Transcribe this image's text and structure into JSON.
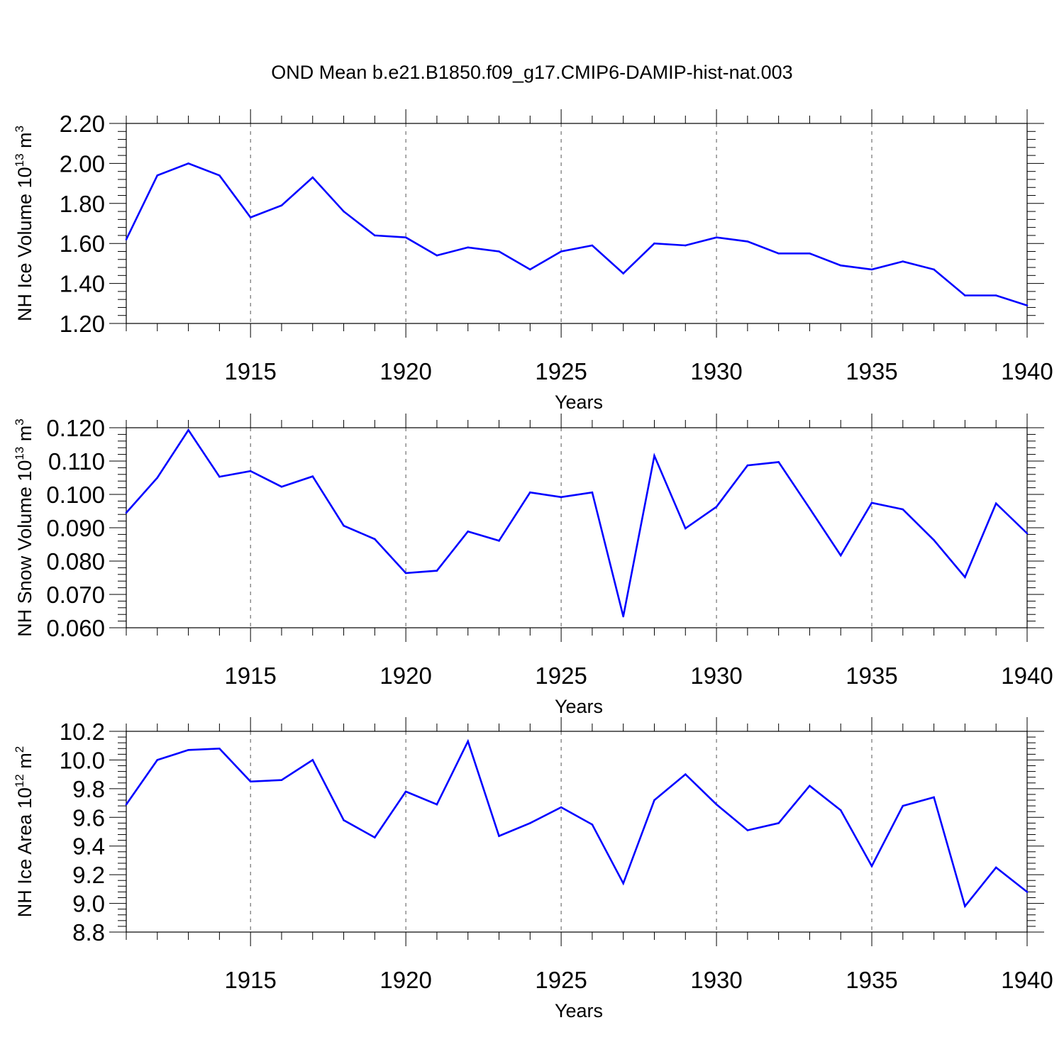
{
  "title": "OND Mean b.e21.B1850.f09_g17.CMIP6-DAMIP-hist-nat.003",
  "colors": {
    "line": "#0000ff",
    "axis": "#000000",
    "grid": "#555555"
  },
  "chart_data": [
    {
      "type": "line",
      "ylabel_main": "NH Ice Volume 10",
      "ylabel_exp": "13",
      "ylabel_unit": " m",
      "ylabel_unit_exp": "3",
      "xlabel": "Years",
      "xlim": [
        1911,
        1940
      ],
      "ylim": [
        1.2,
        2.2
      ],
      "yticks": [
        "1.20",
        "1.40",
        "1.60",
        "1.80",
        "2.00",
        "2.20"
      ],
      "xticks": [
        "1915",
        "1920",
        "1925",
        "1930",
        "1935",
        "1940"
      ],
      "grid": "vertical dashed at major x ticks",
      "x": [
        1911,
        1912,
        1913,
        1914,
        1915,
        1916,
        1917,
        1918,
        1919,
        1920,
        1921,
        1922,
        1923,
        1924,
        1925,
        1926,
        1927,
        1928,
        1929,
        1930,
        1931,
        1932,
        1933,
        1934,
        1935,
        1936,
        1937,
        1938,
        1939,
        1940
      ],
      "values": [
        1.62,
        1.94,
        2.0,
        1.94,
        1.73,
        1.79,
        1.93,
        1.76,
        1.64,
        1.63,
        1.54,
        1.58,
        1.56,
        1.47,
        1.56,
        1.59,
        1.45,
        1.6,
        1.59,
        1.63,
        1.61,
        1.55,
        1.55,
        1.49,
        1.47,
        1.51,
        1.47,
        1.34,
        1.34,
        1.29
      ]
    },
    {
      "type": "line",
      "ylabel_main": "NH Snow Volume 10",
      "ylabel_exp": "13",
      "ylabel_unit": " m",
      "ylabel_unit_exp": "3",
      "xlabel": "Years",
      "xlim": [
        1911,
        1940
      ],
      "ylim": [
        0.06,
        0.12
      ],
      "yticks": [
        "0.060",
        "0.070",
        "0.080",
        "0.090",
        "0.100",
        "0.110",
        "0.120"
      ],
      "xticks": [
        "1915",
        "1920",
        "1925",
        "1930",
        "1935",
        "1940"
      ],
      "grid": "vertical dashed at major x ticks",
      "x": [
        1911,
        1912,
        1913,
        1914,
        1915,
        1916,
        1917,
        1918,
        1919,
        1920,
        1921,
        1922,
        1923,
        1924,
        1925,
        1926,
        1927,
        1928,
        1929,
        1930,
        1931,
        1932,
        1933,
        1934,
        1935,
        1936,
        1937,
        1938,
        1939,
        1940
      ],
      "values": [
        0.0945,
        0.105,
        0.1193,
        0.1053,
        0.107,
        0.1023,
        0.1054,
        0.0906,
        0.0866,
        0.0764,
        0.0771,
        0.0889,
        0.0861,
        0.1006,
        0.0992,
        0.1006,
        0.0634,
        0.1116,
        0.0898,
        0.0963,
        0.1087,
        0.1097,
        0.0958,
        0.0817,
        0.0975,
        0.0955,
        0.0863,
        0.0752,
        0.0973,
        0.0883
      ]
    },
    {
      "type": "line",
      "ylabel_main": "NH Ice Area 10",
      "ylabel_exp": "12",
      "ylabel_unit": " m",
      "ylabel_unit_exp": "2",
      "xlabel": "Years",
      "xlim": [
        1911,
        1940
      ],
      "ylim": [
        8.8,
        10.2
      ],
      "yticks": [
        "8.8",
        "9.0",
        "9.2",
        "9.4",
        "9.6",
        "9.8",
        "10.0",
        "10.2"
      ],
      "xticks": [
        "1915",
        "1920",
        "1925",
        "1930",
        "1935",
        "1940"
      ],
      "grid": "vertical dashed at major x ticks",
      "x": [
        1911,
        1912,
        1913,
        1914,
        1915,
        1916,
        1917,
        1918,
        1919,
        1920,
        1921,
        1922,
        1923,
        1924,
        1925,
        1926,
        1927,
        1928,
        1929,
        1930,
        1931,
        1932,
        1933,
        1934,
        1935,
        1936,
        1937,
        1938,
        1939,
        1940
      ],
      "values": [
        9.69,
        10.0,
        10.07,
        10.08,
        9.85,
        9.86,
        10.0,
        9.58,
        9.46,
        9.78,
        9.69,
        10.13,
        9.47,
        9.56,
        9.67,
        9.55,
        9.14,
        9.72,
        9.9,
        9.69,
        9.51,
        9.56,
        9.82,
        9.65,
        9.26,
        9.68,
        9.74,
        8.98,
        9.25,
        9.08
      ]
    }
  ]
}
